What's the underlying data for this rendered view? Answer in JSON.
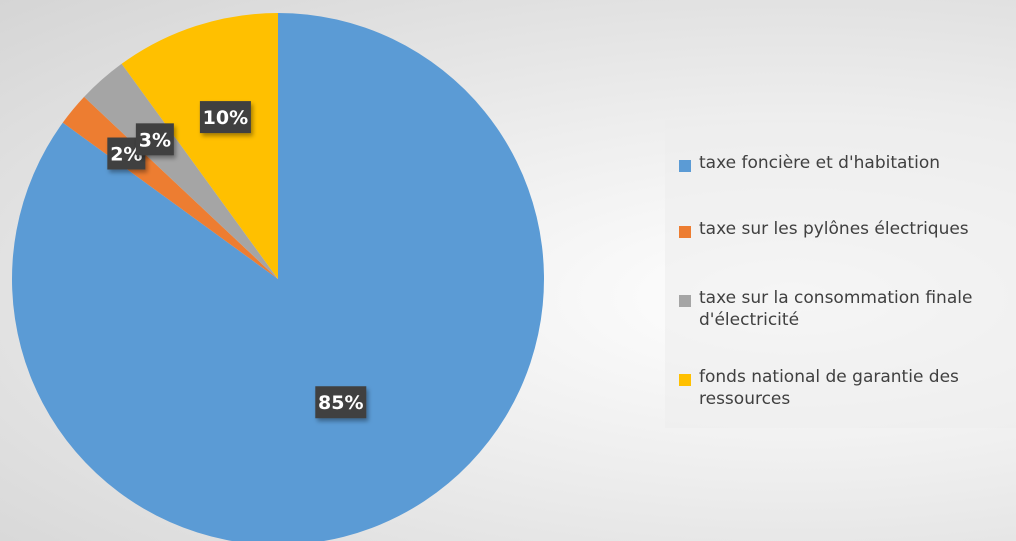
{
  "chart_data": {
    "type": "pie",
    "title": "",
    "start_angle_deg": 0,
    "direction": "clockwise",
    "legend_position": "right",
    "slices": [
      {
        "label": "taxe foncière et d'habitation",
        "value": 85,
        "data_label": "85%",
        "color": "#5B9BD5"
      },
      {
        "label": "taxe sur les pylônes électriques",
        "value": 2,
        "data_label": "2%",
        "color": "#ED7D31"
      },
      {
        "label": "taxe sur la consommation finale d'électricité",
        "value": 3,
        "data_label": "3%",
        "color": "#A5A5A5"
      },
      {
        "label": "fonds national de garantie des ressources",
        "value": 10,
        "data_label": "10%",
        "color": "#FFC000"
      }
    ]
  },
  "legend": {
    "items": [
      {
        "label": "taxe foncière et d'habitation"
      },
      {
        "label": "taxe sur les pylônes électriques"
      },
      {
        "label": "taxe sur la consommation finale d'électricité"
      },
      {
        "label": "fonds national de garantie des ressources"
      }
    ]
  },
  "style": {
    "data_label_background": "#404040",
    "data_label_text_color": "#ffffff"
  }
}
